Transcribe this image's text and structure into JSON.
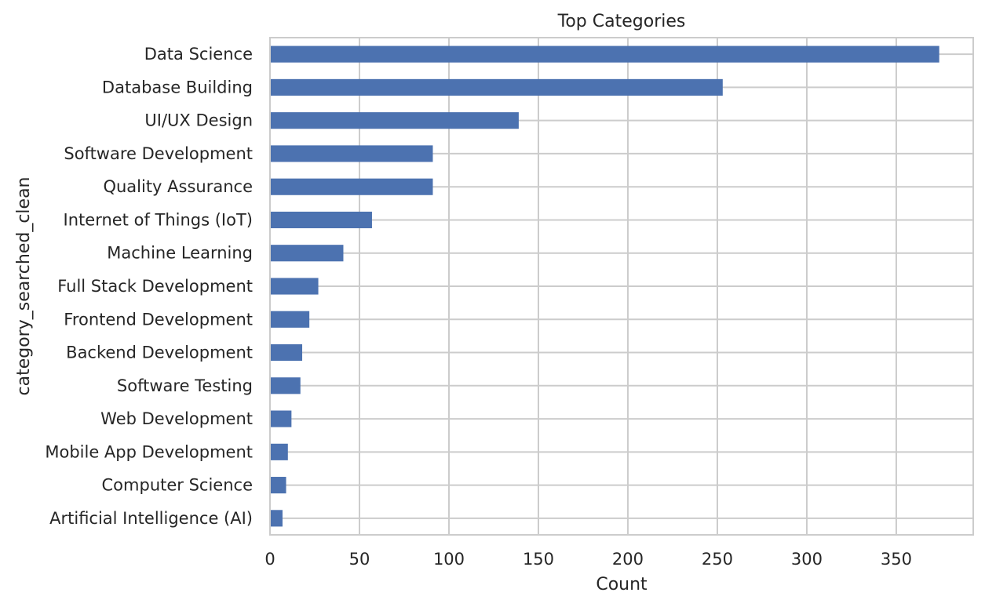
{
  "chart_data": {
    "type": "bar",
    "orientation": "horizontal",
    "title": "Top Categories",
    "xlabel": "Count",
    "ylabel": "category_searched_clean",
    "xlim": [
      0,
      393
    ],
    "xticks": [
      0,
      50,
      100,
      150,
      200,
      250,
      300,
      350
    ],
    "grid": true,
    "categories": [
      "Data Science",
      "Database Building",
      "UI/UX Design",
      "Software Development",
      "Quality Assurance",
      "Internet of Things (IoT)",
      "Machine Learning",
      "Full Stack Development",
      "Frontend Development",
      "Backend Development",
      "Software Testing",
      "Web Development",
      "Mobile App Development",
      "Computer Science",
      "Artificial Intelligence (AI)"
    ],
    "values": [
      374,
      253,
      139,
      91,
      91,
      57,
      41,
      27,
      22,
      18,
      17,
      12,
      10,
      9,
      7
    ],
    "bar_color": "#4c72b0",
    "grid_color": "#cccccc"
  }
}
